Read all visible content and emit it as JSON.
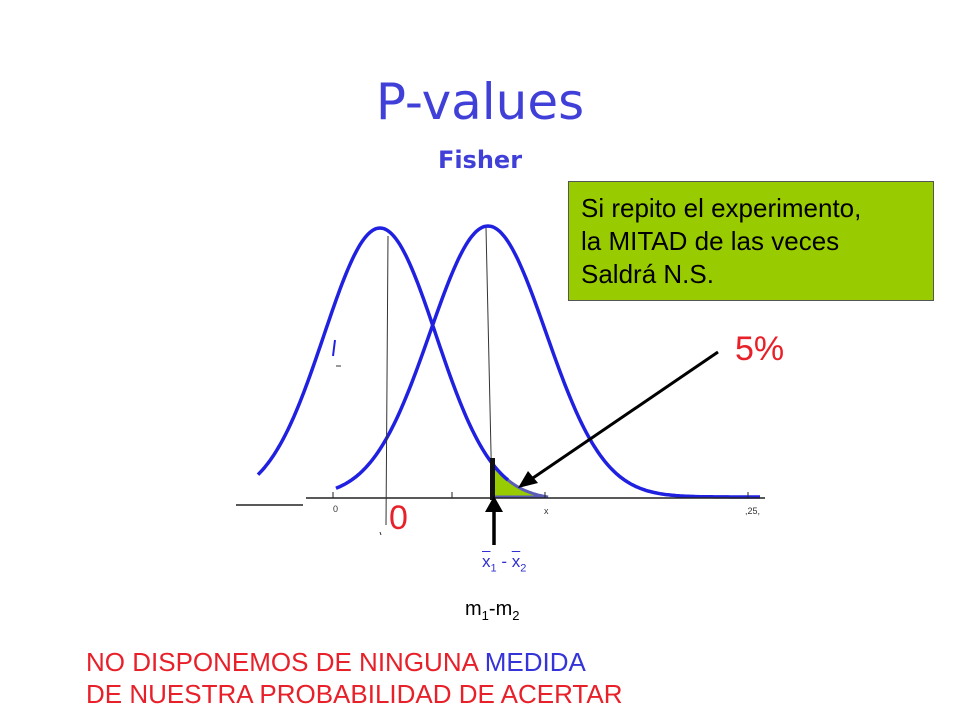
{
  "title": "P-values",
  "subtitle": "Fisher",
  "note": {
    "line1": "Si repito el experimento,",
    "line2": "la MITAD de las veces",
    "line3": "Saldrá N.S."
  },
  "percent_label": "5%",
  "zero_label": "0",
  "sample_diff": {
    "x1": "x",
    "sub1": "1",
    "minus": " - ",
    "x2": "x",
    "sub2": "2"
  },
  "pop_diff": {
    "m1": "m",
    "sub1": "1",
    "minus": "-",
    "m2": "m",
    "sub2": "2"
  },
  "conclusion": {
    "line1_a": "NO DISPONEMOS DE NINGUNA ",
    "line1_b": "MEDIDA",
    "line2": "DE NUESTRA PROBABILIDAD DE ACERTAR"
  },
  "axis_ticks": {
    "left": "0",
    "middle": "x",
    "right": ",25,"
  },
  "colors": {
    "title": "#4040d8",
    "curve": "#2020e0",
    "note_bg": "#99cc00",
    "shade": "#99cc00",
    "red_text": "#e8202a"
  }
}
